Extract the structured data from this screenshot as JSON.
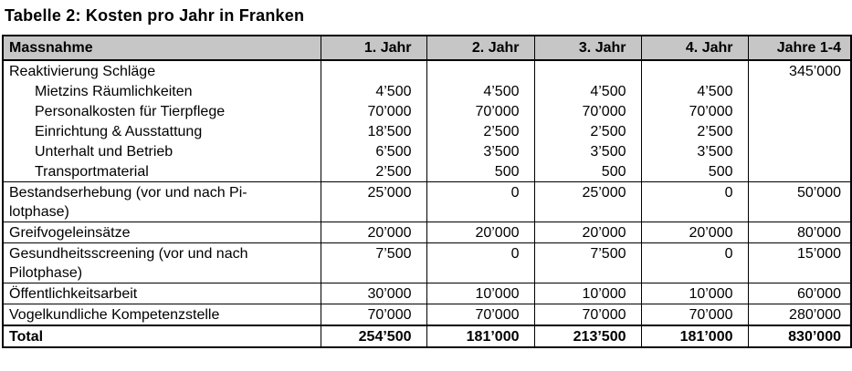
{
  "title": "Tabelle 2: Kosten pro Jahr in Franken",
  "table": {
    "columns": [
      "Massnahme",
      "1. Jahr",
      "2. Jahr",
      "3. Jahr",
      "4. Jahr",
      "Jahre 1-4"
    ],
    "rows": [
      {
        "label": "Reaktivierung Schläge",
        "values": [
          "",
          "",
          "",
          "",
          "345’000"
        ]
      },
      {
        "label": "Mietzins Räumlichkeiten",
        "values": [
          "4’500",
          "4’500",
          "4’500",
          "4’500",
          ""
        ]
      },
      {
        "label": "Personalkosten für Tierpflege",
        "values": [
          "70’000",
          "70’000",
          "70’000",
          "70’000",
          ""
        ]
      },
      {
        "label": "Einrichtung & Ausstattung",
        "values": [
          "18’500",
          "2’500",
          "2’500",
          "2’500",
          ""
        ]
      },
      {
        "label": "Unterhalt und Betrieb",
        "values": [
          "6’500",
          "3’500",
          "3’500",
          "3’500",
          ""
        ]
      },
      {
        "label": "Transportmaterial",
        "values": [
          "2’500",
          "500",
          "500",
          "500",
          ""
        ]
      },
      {
        "label": "Bestandserhebung (vor und nach Pi-\nlotphase)",
        "values": [
          "25’000",
          "0",
          "25’000",
          "0",
          "50’000"
        ]
      },
      {
        "label": "Greifvogeleinsätze",
        "values": [
          "20’000",
          "20’000",
          "20’000",
          "20’000",
          "80’000"
        ]
      },
      {
        "label": "Gesundheitsscreening (vor und nach\nPilotphase)",
        "values": [
          "7’500",
          "0",
          "7’500",
          "0",
          "15’000"
        ]
      },
      {
        "label": "Öffentlichkeitsarbeit",
        "values": [
          "30’000",
          "10’000",
          "10’000",
          "10’000",
          "60’000"
        ]
      },
      {
        "label": "Vogelkundliche Kompetenzstelle",
        "values": [
          "70’000",
          "70’000",
          "70’000",
          "70’000",
          "280’000"
        ]
      },
      {
        "label": "Total",
        "values": [
          "254’500",
          "181’000",
          "213’500",
          "181’000",
          "830’000"
        ]
      }
    ],
    "header_bg_color": "#c6c6c6",
    "border_color": "#000000"
  }
}
